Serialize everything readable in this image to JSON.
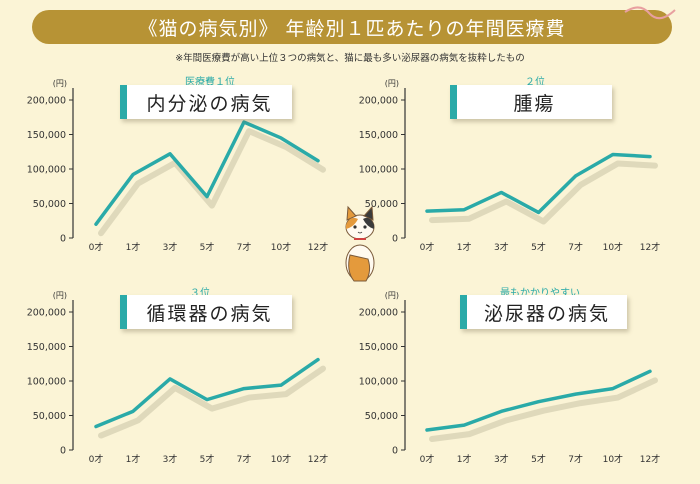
{
  "header": {
    "title": "《猫の病気別》 年齢別１匹あたりの年間医療費",
    "note": "※年間医療費が高い上位３つの病気と、猫に最も多い泌尿器の病気を抜粋したもの"
  },
  "colors": {
    "line": "#2aaaa8",
    "banner": "#b79335",
    "background": "#fbf4d6",
    "axis": "#333333",
    "shadow": "#c9c2a6"
  },
  "chart_data": [
    {
      "type": "line",
      "title": "内分泌の病気",
      "rank": "医療費１位",
      "unit": "(円)",
      "categories": [
        "0才",
        "1才",
        "3才",
        "5才",
        "7才",
        "10才",
        "12才"
      ],
      "values": [
        20000,
        92000,
        122000,
        60000,
        168000,
        145000,
        112000
      ],
      "yticks": [
        "0",
        "50,000",
        "100,000",
        "150,000",
        "200,000"
      ],
      "ylim": [
        0,
        200000
      ]
    },
    {
      "type": "line",
      "title": "腫瘍",
      "rank": "２位",
      "unit": "(円)",
      "categories": [
        "0才",
        "1才",
        "3才",
        "5才",
        "7才",
        "10才",
        "12才"
      ],
      "values": [
        39000,
        41000,
        66000,
        37000,
        90000,
        121000,
        118000
      ],
      "yticks": [
        "0",
        "50,000",
        "100,000",
        "150,000",
        "200,000"
      ],
      "ylim": [
        0,
        200000
      ]
    },
    {
      "type": "line",
      "title": "循環器の病気",
      "rank": "３位",
      "unit": "(円)",
      "categories": [
        "0才",
        "1才",
        "3才",
        "5才",
        "7才",
        "10才",
        "12才"
      ],
      "values": [
        34000,
        56000,
        103000,
        73000,
        89000,
        94000,
        131000
      ],
      "yticks": [
        "0",
        "50,000",
        "100,000",
        "150,000",
        "200,000"
      ],
      "ylim": [
        0,
        200000
      ]
    },
    {
      "type": "line",
      "title": "泌尿器の病気",
      "rank": "最もかかりやすい",
      "unit": "(円)",
      "categories": [
        "0才",
        "1才",
        "3才",
        "5才",
        "7才",
        "10才",
        "12才"
      ],
      "values": [
        29000,
        36000,
        56000,
        70000,
        81000,
        89000,
        114000
      ],
      "yticks": [
        "0",
        "50,000",
        "100,000",
        "150,000",
        "200,000"
      ],
      "ylim": [
        0,
        200000
      ]
    }
  ]
}
